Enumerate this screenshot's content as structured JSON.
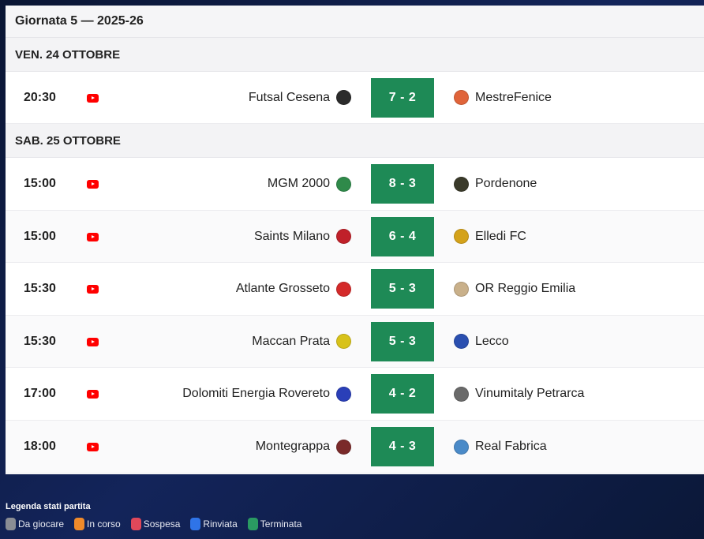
{
  "header": {
    "title": "Giornata 5 — 2025-26"
  },
  "days": [
    {
      "label": "VEN. 24 OTTOBRE",
      "matches": [
        {
          "time": "20:30",
          "home": "Futsal Cesena",
          "home_color": "#2b2b2b",
          "score": "7 - 2",
          "away": "MestreFenice",
          "away_color": "#e0643a"
        }
      ]
    },
    {
      "label": "SAB. 25 OTTOBRE",
      "matches": [
        {
          "time": "15:00",
          "home": "MGM 2000",
          "home_color": "#2f8a4a",
          "score": "8 - 3",
          "away": "Pordenone",
          "away_color": "#3a3a2a"
        },
        {
          "time": "15:00",
          "home": "Saints Milano",
          "home_color": "#c0202a",
          "score": "6 - 4",
          "away": "Elledi FC",
          "away_color": "#d4a21a"
        },
        {
          "time": "15:30",
          "home": "Atlante Grosseto",
          "home_color": "#d42a2a",
          "score": "5 - 3",
          "away": "OR Reggio Emilia",
          "away_color": "#c9b08a"
        },
        {
          "time": "15:30",
          "home": "Maccan Prata",
          "home_color": "#d8c21a",
          "score": "5 - 3",
          "away": "Lecco",
          "away_color": "#2a4fb0"
        },
        {
          "time": "17:00",
          "home": "Dolomiti Energia Rovereto",
          "home_color": "#2a3fb8",
          "score": "4 - 2",
          "away": "Vinumitaly Petrarca",
          "away_color": "#6a6a6a"
        },
        {
          "time": "18:00",
          "home": "Montegrappa",
          "home_color": "#7a2a2a",
          "score": "4 - 3",
          "away": "Real Fabrica",
          "away_color": "#4a8ac8"
        }
      ]
    }
  ],
  "legend": {
    "title": "Legenda stati partita",
    "items": [
      {
        "label": "Da giocare",
        "color": "#8a8d94"
      },
      {
        "label": "In corso",
        "color": "#f08a2a"
      },
      {
        "label": "Sospesa",
        "color": "#e0485a"
      },
      {
        "label": "Rinviata",
        "color": "#2f74e8"
      },
      {
        "label": "Terminata",
        "color": "#2a9a62"
      }
    ]
  },
  "icons": {
    "broadcast": "youtube-icon"
  }
}
